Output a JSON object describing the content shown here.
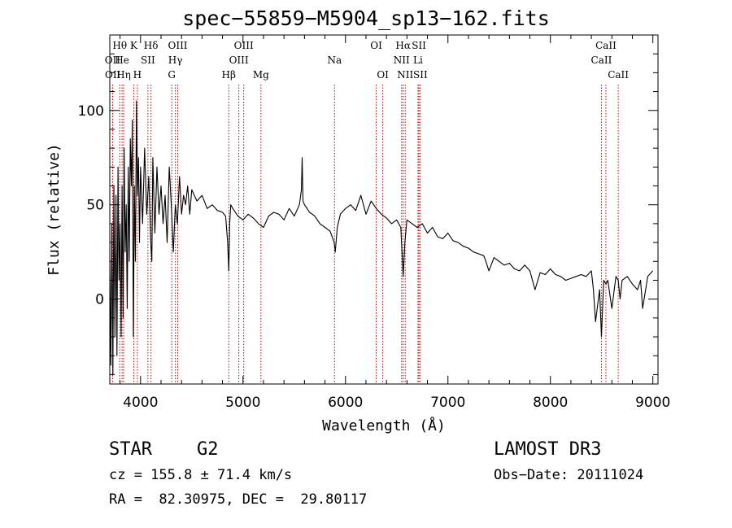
{
  "title": "spec−55859−M5904_sp13−162.fits",
  "chart_data": {
    "type": "line",
    "title": "spec−55859−M5904_sp13−162.fits",
    "xlabel": "Wavelength (Å)",
    "ylabel": "Flux (relative)",
    "xlim": [
      3700,
      9050
    ],
    "ylim": [
      -45,
      140
    ],
    "x_ticks": [
      4000,
      5000,
      6000,
      7000,
      8000,
      9000
    ],
    "y_ticks": [
      0,
      50,
      100
    ],
    "series": [
      {
        "name": "flux",
        "x": [
          3700,
          3710,
          3720,
          3730,
          3740,
          3750,
          3760,
          3770,
          3780,
          3790,
          3800,
          3810,
          3820,
          3830,
          3840,
          3850,
          3860,
          3870,
          3880,
          3890,
          3900,
          3910,
          3920,
          3930,
          3940,
          3950,
          3960,
          3970,
          3980,
          3990,
          4000,
          4020,
          4040,
          4060,
          4080,
          4100,
          4110,
          4120,
          4140,
          4160,
          4180,
          4200,
          4220,
          4240,
          4260,
          4280,
          4300,
          4320,
          4340,
          4360,
          4380,
          4400,
          4420,
          4440,
          4460,
          4480,
          4500,
          4550,
          4600,
          4650,
          4700,
          4750,
          4800,
          4830,
          4850,
          4861,
          4870,
          4880,
          4900,
          4950,
          5000,
          5050,
          5100,
          5150,
          5200,
          5250,
          5300,
          5350,
          5400,
          5450,
          5500,
          5550,
          5570,
          5577,
          5585,
          5600,
          5650,
          5700,
          5750,
          5800,
          5850,
          5890,
          5900,
          5920,
          5950,
          6000,
          6050,
          6100,
          6150,
          6200,
          6250,
          6300,
          6350,
          6400,
          6450,
          6500,
          6540,
          6563,
          6580,
          6600,
          6650,
          6700,
          6750,
          6800,
          6850,
          6900,
          6950,
          7000,
          7050,
          7100,
          7150,
          7200,
          7250,
          7300,
          7350,
          7370,
          7400,
          7450,
          7500,
          7550,
          7600,
          7650,
          7700,
          7750,
          7800,
          7850,
          7900,
          7950,
          8000,
          8050,
          8100,
          8150,
          8200,
          8250,
          8300,
          8350,
          8400,
          8420,
          8440,
          8480,
          8498,
          8520,
          8542,
          8560,
          8600,
          8640,
          8662,
          8680,
          8700,
          8750,
          8800,
          8850,
          8880,
          8900,
          8950,
          9000
        ],
        "values": [
          20,
          -35,
          40,
          -40,
          60,
          -20,
          55,
          -30,
          70,
          10,
          40,
          -20,
          60,
          -10,
          80,
          25,
          50,
          -5,
          70,
          20,
          85,
          60,
          95,
          -20,
          60,
          20,
          105,
          55,
          75,
          30,
          70,
          40,
          80,
          45,
          65,
          30,
          20,
          75,
          35,
          70,
          45,
          60,
          40,
          55,
          30,
          70,
          50,
          25,
          50,
          40,
          65,
          45,
          55,
          50,
          60,
          45,
          58,
          52,
          55,
          48,
          50,
          47,
          46,
          44,
          30,
          15,
          40,
          50,
          48,
          44,
          42,
          45,
          43,
          40,
          38,
          44,
          46,
          45,
          42,
          48,
          44,
          50,
          58,
          75,
          52,
          50,
          46,
          44,
          40,
          38,
          36,
          30,
          25,
          38,
          45,
          48,
          50,
          47,
          55,
          45,
          52,
          48,
          45,
          43,
          40,
          42,
          38,
          12,
          30,
          42,
          40,
          38,
          40,
          35,
          38,
          33,
          32,
          35,
          31,
          30,
          28,
          27,
          25,
          24,
          23,
          20,
          15,
          22,
          20,
          18,
          19,
          16,
          15,
          18,
          15,
          5,
          14,
          13,
          16,
          13,
          12,
          10,
          11,
          12,
          13,
          12,
          15,
          5,
          -12,
          5,
          -20,
          10,
          8,
          10,
          -5,
          12,
          10,
          0,
          10,
          12,
          8,
          5,
          10,
          -5,
          12,
          15
        ]
      }
    ],
    "line_markers": [
      {
        "label": "Hθ",
        "x": 3797,
        "row": 0
      },
      {
        "label": "OII",
        "x": 3727,
        "row": 1
      },
      {
        "label": "OII",
        "x": 3729,
        "row": 2
      },
      {
        "label": "He",
        "x": 3820,
        "row": 1
      },
      {
        "label": "Hη",
        "x": 3835,
        "row": 2
      },
      {
        "label": "K",
        "x": 3934,
        "row": 0
      },
      {
        "label": "H",
        "x": 3969,
        "row": 2
      },
      {
        "label": "SII",
        "x": 4072,
        "row": 1
      },
      {
        "label": "Hδ",
        "x": 4102,
        "row": 0
      },
      {
        "label": "OIII",
        "x": 4363,
        "row": 0
      },
      {
        "label": "Hγ",
        "x": 4340,
        "row": 1
      },
      {
        "label": "G",
        "x": 4305,
        "row": 2
      },
      {
        "label": "Hβ",
        "x": 4861,
        "row": 2
      },
      {
        "label": "OIII",
        "x": 4959,
        "row": 1
      },
      {
        "label": "OIII",
        "x": 5007,
        "row": 0
      },
      {
        "label": "Mg",
        "x": 5175,
        "row": 2
      },
      {
        "label": "Na",
        "x": 5893,
        "row": 1
      },
      {
        "label": "OI",
        "x": 6300,
        "row": 0
      },
      {
        "label": "OI",
        "x": 6364,
        "row": 2
      },
      {
        "label": "Hα",
        "x": 6563,
        "row": 0
      },
      {
        "label": "NII",
        "x": 6548,
        "row": 1
      },
      {
        "label": "NII",
        "x": 6583,
        "row": 2
      },
      {
        "label": "SII",
        "x": 6717,
        "row": 0
      },
      {
        "label": "Li",
        "x": 6708,
        "row": 1
      },
      {
        "label": "SII",
        "x": 6731,
        "row": 2
      },
      {
        "label": "CaII",
        "x": 8542,
        "row": 0
      },
      {
        "label": "CaII",
        "x": 8498,
        "row": 1
      },
      {
        "label": "CaII",
        "x": 8662,
        "row": 2
      }
    ]
  },
  "info": {
    "class": "STAR",
    "subclass": "G2",
    "survey": "LAMOST DR3",
    "cz": "cz = 155.8 ± 71.4 km/s",
    "obs_date": "Obs−Date: 20111024",
    "coords": "RA =  82.30975, DEC =  29.80117"
  },
  "colors": {
    "axis": "#000000",
    "spectrum": "#000000",
    "marker": "#c00000"
  }
}
